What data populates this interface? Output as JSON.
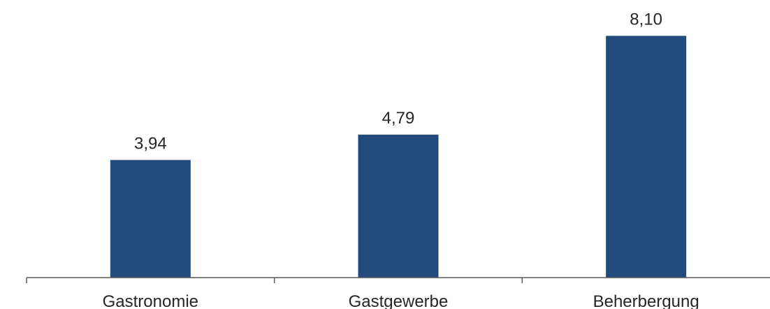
{
  "chart_data": {
    "type": "bar",
    "categories": [
      "Gastronomie",
      "Gastgewerbe",
      "Beherbergung"
    ],
    "values": [
      3.94,
      4.79,
      8.1
    ],
    "value_labels": [
      "3,94",
      "4,79",
      "8,10"
    ],
    "title": "",
    "xlabel": "",
    "ylabel": "",
    "ylim": [
      0,
      8.88
    ],
    "grid": false,
    "legend": "none",
    "bar_color": "#224A7C",
    "axis_color": "#595959"
  }
}
